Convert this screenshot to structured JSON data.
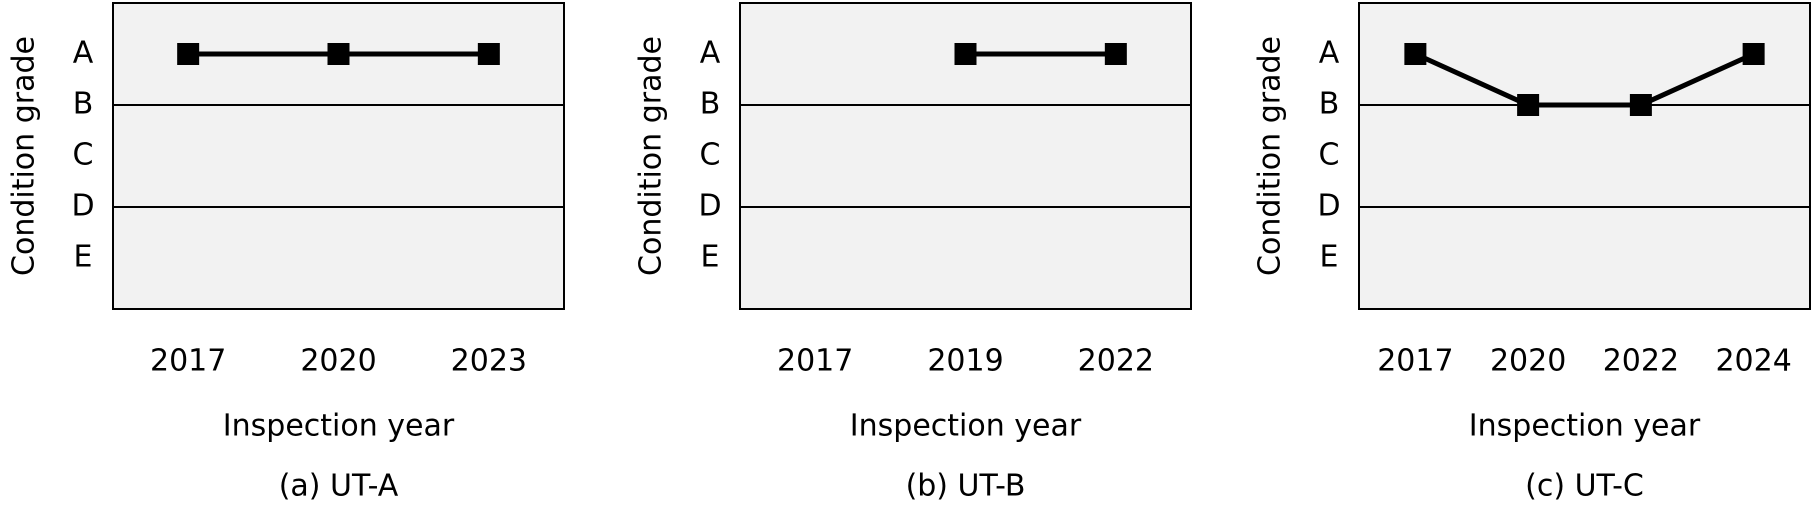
{
  "chart_data": [
    {
      "type": "line",
      "title": "(a) UT-A",
      "x_label": "Inspection year",
      "y_label": "Condition grade",
      "categories": [
        "2017",
        "2020",
        "2023"
      ],
      "y_categories": [
        "A",
        "B",
        "C",
        "D",
        "E"
      ],
      "series": [
        {
          "color": "#000000",
          "values": [
            "A",
            "A",
            "A"
          ]
        }
      ]
    },
    {
      "type": "line",
      "title": "(b) UT-B",
      "x_label": "Inspection year",
      "y_label": "Condition grade",
      "categories": [
        "2017",
        "2019",
        "2022"
      ],
      "y_categories": [
        "A",
        "B",
        "C",
        "D",
        "E"
      ],
      "series": [
        {
          "color": "#000000",
          "values": [
            null,
            "A",
            "A"
          ]
        }
      ]
    },
    {
      "type": "line",
      "title": "(c) UT-C",
      "x_label": "Inspection year",
      "y_label": "Condition grade",
      "categories": [
        "2017",
        "2020",
        "2022",
        "2024"
      ],
      "y_categories": [
        "A",
        "B",
        "C",
        "D",
        "E"
      ],
      "series": [
        {
          "color": "#000000",
          "values": [
            "A",
            "B",
            "B",
            "A"
          ]
        }
      ]
    }
  ]
}
